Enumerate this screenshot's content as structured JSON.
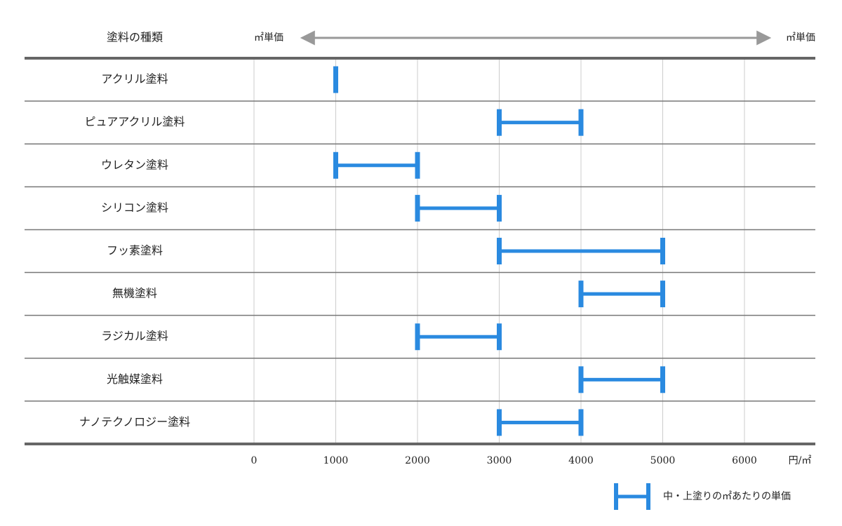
{
  "chart_data": {
    "type": "range",
    "category_header": "塗料の種類",
    "axis_label_left": "㎡単価",
    "axis_label_right": "㎡単価",
    "x_unit": "円/㎡",
    "categories": [
      "アクリル塗料",
      "ピュアアクリル塗料",
      "ウレタン塗料",
      "シリコン塗料",
      "フッ素塗料",
      "無機塗料",
      "ラジカル塗料",
      "光触媒塗料",
      "ナノテクノロジー塗料"
    ],
    "series": [
      {
        "name": "中・上塗りの㎡あたりの単価",
        "color": "#2a8ae0",
        "low": [
          1000,
          3000,
          1000,
          2000,
          3000,
          4000,
          2000,
          4000,
          3000
        ],
        "high": [
          1000,
          4000,
          2000,
          3000,
          5000,
          5000,
          3000,
          5000,
          4000
        ]
      }
    ],
    "xlim": [
      0,
      6000
    ],
    "xticks": [
      0,
      1000,
      2000,
      3000,
      4000,
      5000,
      6000
    ],
    "grid": true
  }
}
